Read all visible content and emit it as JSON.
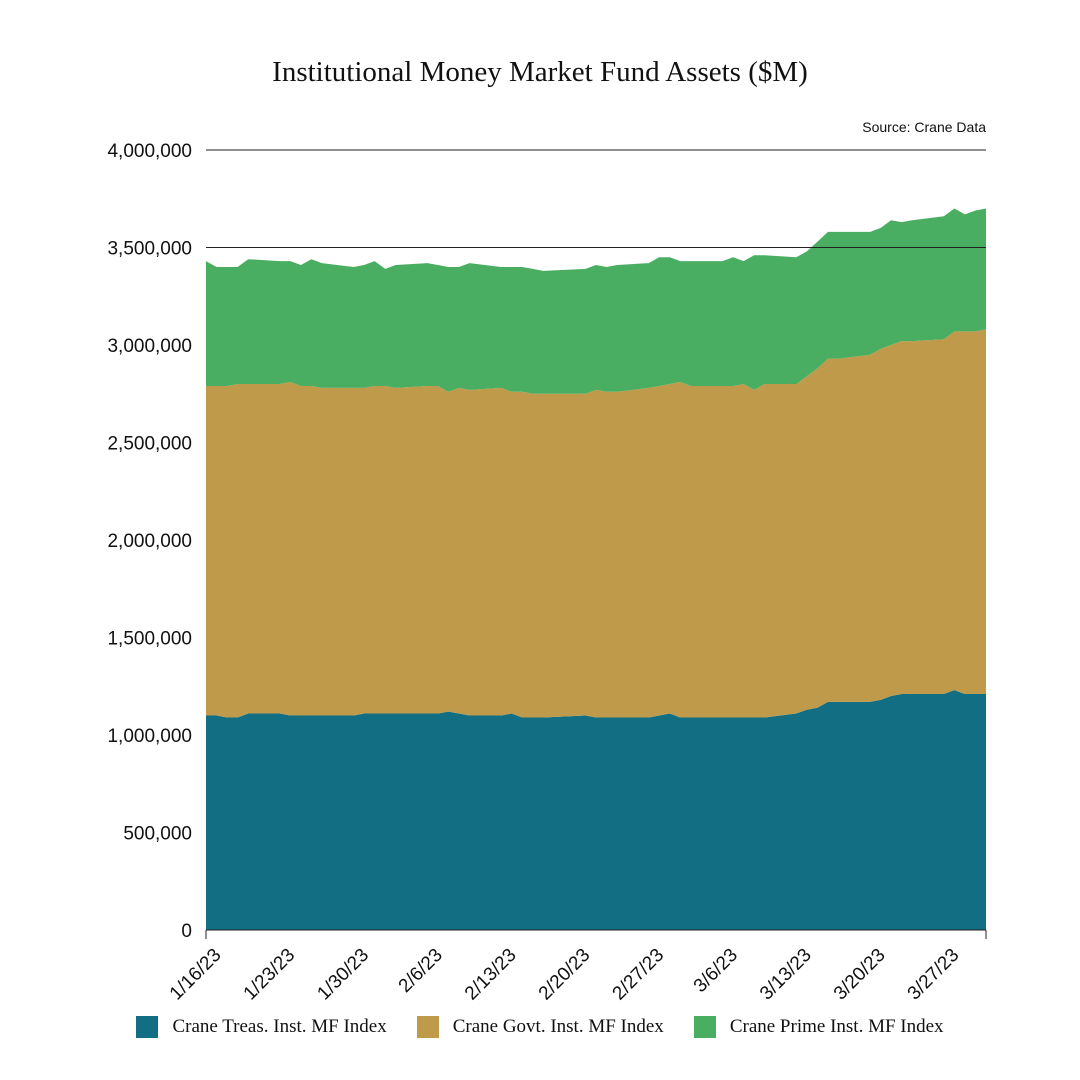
{
  "chart_data": {
    "type": "area",
    "stacked": true,
    "title": "Institutional Money Market Fund Assets ($M)",
    "source": "Source: Crane Data",
    "ylim": [
      0,
      4000000
    ],
    "yticks": [
      "0",
      "500,000",
      "1,000,000",
      "1,500,000",
      "2,000,000",
      "2,500,000",
      "3,000,000",
      "3,500,000",
      "4,000,000"
    ],
    "ytick_values": [
      0,
      500000,
      1000000,
      1500000,
      2000000,
      2500000,
      3000000,
      3500000,
      4000000
    ],
    "gridlines": [
      3500000,
      4000000
    ],
    "x_start": "2023-01-16",
    "x_end": "2023-03-31",
    "xticks": [
      "1/16/23",
      "1/23/23",
      "1/30/23",
      "2/6/23",
      "2/13/23",
      "2/20/23",
      "2/27/23",
      "3/6/23",
      "3/13/23",
      "3/20/23",
      "3/27/23"
    ],
    "xtick_dates": [
      "2023-01-16",
      "2023-01-23",
      "2023-01-30",
      "2023-02-06",
      "2023-02-13",
      "2023-02-20",
      "2023-02-27",
      "2023-03-06",
      "2023-03-13",
      "2023-03-20",
      "2023-03-27"
    ],
    "x": [
      "2023-01-16",
      "2023-01-17",
      "2023-01-18",
      "2023-01-19",
      "2023-01-20",
      "2023-01-23",
      "2023-01-24",
      "2023-01-25",
      "2023-01-26",
      "2023-01-27",
      "2023-01-30",
      "2023-01-31",
      "2023-02-01",
      "2023-02-02",
      "2023-02-03",
      "2023-02-06",
      "2023-02-07",
      "2023-02-08",
      "2023-02-09",
      "2023-02-10",
      "2023-02-13",
      "2023-02-14",
      "2023-02-15",
      "2023-02-16",
      "2023-02-17",
      "2023-02-21",
      "2023-02-22",
      "2023-02-23",
      "2023-02-24",
      "2023-02-27",
      "2023-02-28",
      "2023-03-01",
      "2023-03-02",
      "2023-03-03",
      "2023-03-06",
      "2023-03-07",
      "2023-03-08",
      "2023-03-09",
      "2023-03-10",
      "2023-03-13",
      "2023-03-14",
      "2023-03-15",
      "2023-03-16",
      "2023-03-17",
      "2023-03-20",
      "2023-03-21",
      "2023-03-22",
      "2023-03-23",
      "2023-03-24",
      "2023-03-27",
      "2023-03-28",
      "2023-03-29",
      "2023-03-30",
      "2023-03-31"
    ],
    "series": [
      {
        "name": "Crane Treas. Inst. MF Index",
        "color": "#126e82",
        "values": [
          1100000,
          1100000,
          1090000,
          1090000,
          1110000,
          1110000,
          1100000,
          1100000,
          1100000,
          1100000,
          1100000,
          1110000,
          1110000,
          1110000,
          1110000,
          1110000,
          1110000,
          1120000,
          1110000,
          1100000,
          1100000,
          1110000,
          1090000,
          1090000,
          1090000,
          1100000,
          1090000,
          1090000,
          1090000,
          1090000,
          1100000,
          1110000,
          1090000,
          1090000,
          1090000,
          1090000,
          1090000,
          1090000,
          1090000,
          1110000,
          1130000,
          1140000,
          1170000,
          1170000,
          1170000,
          1180000,
          1200000,
          1210000,
          1210000,
          1210000,
          1230000,
          1210000,
          1210000,
          1210000
        ]
      },
      {
        "name": "Crane Govt. Inst. MF Index",
        "color": "#be9a4a",
        "values": [
          1690000,
          1690000,
          1700000,
          1710000,
          1690000,
          1690000,
          1710000,
          1690000,
          1690000,
          1680000,
          1680000,
          1670000,
          1680000,
          1680000,
          1670000,
          1680000,
          1680000,
          1640000,
          1670000,
          1670000,
          1680000,
          1650000,
          1670000,
          1660000,
          1660000,
          1650000,
          1680000,
          1670000,
          1670000,
          1690000,
          1690000,
          1690000,
          1720000,
          1700000,
          1700000,
          1700000,
          1710000,
          1680000,
          1710000,
          1690000,
          1710000,
          1740000,
          1760000,
          1760000,
          1780000,
          1800000,
          1800000,
          1810000,
          1810000,
          1820000,
          1840000,
          1860000,
          1860000,
          1870000
        ]
      },
      {
        "name": "Crane Prime Inst. MF Index",
        "color": "#4aae62",
        "values": [
          640000,
          610000,
          610000,
          600000,
          640000,
          630000,
          620000,
          620000,
          650000,
          640000,
          620000,
          630000,
          640000,
          600000,
          630000,
          630000,
          620000,
          640000,
          620000,
          650000,
          620000,
          640000,
          640000,
          640000,
          630000,
          640000,
          640000,
          640000,
          650000,
          640000,
          660000,
          650000,
          620000,
          640000,
          640000,
          660000,
          630000,
          690000,
          660000,
          650000,
          640000,
          650000,
          650000,
          650000,
          630000,
          620000,
          640000,
          610000,
          620000,
          630000,
          630000,
          600000,
          620000,
          620000
        ]
      }
    ],
    "legend_position": "bottom"
  }
}
